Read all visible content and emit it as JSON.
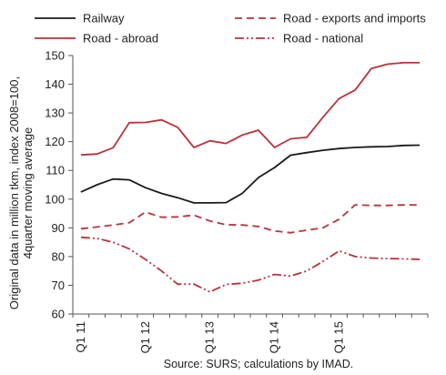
{
  "chart_data": {
    "type": "line",
    "title": "",
    "ylabel": "Original data in million tkm,  index 2008=100, 4quarter moving average",
    "xlabel": "",
    "source": "Source: SURS; calculations by IMAD.",
    "ylim": [
      60,
      150
    ],
    "yticks": [
      60,
      70,
      80,
      90,
      100,
      110,
      120,
      130,
      140,
      150
    ],
    "xtick_labels": [
      "Q1 11",
      "Q1 12",
      "Q1 13",
      "Q1 14",
      "Q1 15"
    ],
    "xtick_index": [
      0,
      4,
      8,
      12,
      16
    ],
    "x": [
      "Q1 11",
      "Q2 11",
      "Q3 11",
      "Q4 11",
      "Q1 12",
      "Q2 12",
      "Q3 12",
      "Q4 12",
      "Q1 13",
      "Q2 13",
      "Q3 13",
      "Q4 13",
      "Q1 14",
      "Q2 14",
      "Q3 14",
      "Q4 14",
      "Q1 15",
      "Q2 15",
      "Q3 15",
      "Q4 15",
      "Q1 16",
      "Q2 16"
    ],
    "grid": false,
    "legend_placement": "top",
    "series": [
      {
        "name": "Railway",
        "color": "#1a1a1a",
        "dash": "solid",
        "values": [
          102.5,
          105.0,
          107.0,
          106.7,
          104.0,
          102.0,
          100.5,
          98.7,
          98.7,
          98.8,
          102.0,
          107.5,
          111.0,
          115.3,
          116.2,
          117.0,
          117.6,
          118.0,
          118.2,
          118.3,
          118.7,
          118.8
        ]
      },
      {
        "name": "Road - exports and imports",
        "color": "#b8323a",
        "dash": "8,5",
        "values": [
          89.7,
          90.3,
          91.0,
          91.8,
          95.5,
          93.7,
          93.8,
          94.4,
          92.4,
          91.1,
          91.0,
          90.5,
          88.9,
          88.3,
          89.2,
          90.0,
          93.0,
          98.0,
          97.8,
          97.8,
          98.0,
          98.0
        ]
      },
      {
        "name": "Road - abroad",
        "color": "#b8323a",
        "dash": "solid",
        "values": [
          115.4,
          115.7,
          117.9,
          126.6,
          126.7,
          127.6,
          125.0,
          118.0,
          120.3,
          119.4,
          122.3,
          124.0,
          118.0,
          121.0,
          121.5,
          128.5,
          135.0,
          138.0,
          145.5,
          147.0,
          147.5,
          147.5
        ]
      },
      {
        "name": "Road - national",
        "color": "#b8323a",
        "dash": "10,3,2,3,2,3",
        "values": [
          86.7,
          86.3,
          85.0,
          82.7,
          79.0,
          75.0,
          70.4,
          70.4,
          67.7,
          70.3,
          70.7,
          71.8,
          73.8,
          73.2,
          75.0,
          78.3,
          82.0,
          80.0,
          79.5,
          79.3,
          79.2,
          79.0
        ]
      }
    ]
  }
}
